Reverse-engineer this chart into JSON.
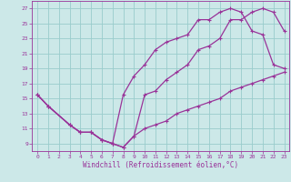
{
  "xlabel": "Windchill (Refroidissement éolien,°C)",
  "bg_color": "#cce8e8",
  "grid_color": "#99cccc",
  "line_color": "#993399",
  "spine_color": "#993399",
  "xlim": [
    -0.5,
    23.5
  ],
  "ylim": [
    8,
    28
  ],
  "xticks": [
    0,
    1,
    2,
    3,
    4,
    5,
    6,
    7,
    8,
    9,
    10,
    11,
    12,
    13,
    14,
    15,
    16,
    17,
    18,
    19,
    20,
    21,
    22,
    23
  ],
  "yticks": [
    9,
    11,
    13,
    15,
    17,
    19,
    21,
    23,
    25,
    27
  ],
  "line1_x": [
    0,
    1,
    3,
    4,
    5,
    6,
    7,
    8,
    9,
    10,
    11,
    12,
    13,
    14,
    15,
    16,
    17,
    18,
    19,
    20,
    21,
    22,
    23
  ],
  "line1_y": [
    15.5,
    14,
    11.5,
    10.5,
    10.5,
    9.5,
    9,
    8.5,
    10,
    15.5,
    16,
    17.5,
    18.5,
    19.5,
    21.5,
    22,
    23,
    25.5,
    25.5,
    26.5,
    27,
    26.5,
    24
  ],
  "line2_x": [
    0,
    1,
    3,
    4,
    5,
    6,
    7,
    8,
    9,
    10,
    11,
    12,
    13,
    14,
    15,
    16,
    17,
    18,
    19,
    20,
    21,
    22,
    23
  ],
  "line2_y": [
    15.5,
    14,
    11.5,
    10.5,
    10.5,
    9.5,
    9,
    15.5,
    18,
    19.5,
    21.5,
    22.5,
    23,
    23.5,
    25.5,
    25.5,
    26.5,
    27,
    26.5,
    24,
    23.5,
    19.5,
    19
  ],
  "line3_x": [
    0,
    1,
    3,
    4,
    5,
    6,
    7,
    8,
    9,
    10,
    11,
    12,
    13,
    14,
    15,
    16,
    17,
    18,
    19,
    20,
    21,
    22,
    23
  ],
  "line3_y": [
    15.5,
    14,
    11.5,
    10.5,
    10.5,
    9.5,
    9,
    8.5,
    10,
    11,
    11.5,
    12,
    13,
    13.5,
    14,
    14.5,
    15,
    16,
    16.5,
    17,
    17.5,
    18,
    18.5
  ]
}
